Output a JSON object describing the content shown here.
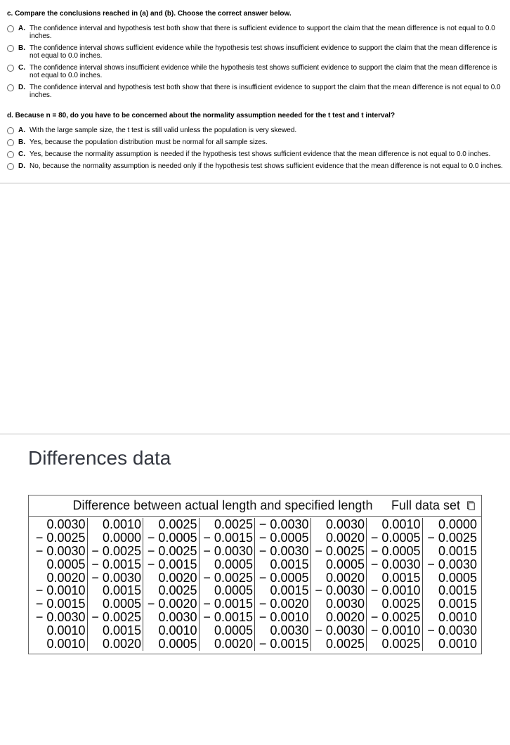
{
  "question_c": {
    "stem": "c. Compare the conclusions reached in (a) and (b). Choose the correct answer below.",
    "options": [
      {
        "letter": "A.",
        "text": "The confidence interval and hypothesis test both show that there is sufficient evidence to support the claim that the mean difference is not equal to 0.0 inches."
      },
      {
        "letter": "B.",
        "text": "The confidence interval shows sufficient evidence while the hypothesis test shows insufficient evidence to support the claim that the mean difference is not equal to 0.0 inches."
      },
      {
        "letter": "C.",
        "text": "The confidence interval shows insufficient evidence while the hypothesis test shows sufficient evidence to support the claim that the mean difference is not equal to 0.0 inches."
      },
      {
        "letter": "D.",
        "text": "The confidence interval and hypothesis test both show that there is insufficient evidence to support the claim that the mean difference is not equal to 0.0 inches."
      }
    ]
  },
  "question_d": {
    "stem": "d. Because n = 80, do you have to be concerned about the normality assumption needed for the t test and t interval?",
    "options": [
      {
        "letter": "A.",
        "text": "With the large sample size, the t test is still valid unless the population is very skewed."
      },
      {
        "letter": "B.",
        "text": "Yes, because the population distribution must be normal for all sample sizes."
      },
      {
        "letter": "C.",
        "text": "Yes, because the normality assumption is needed if the hypothesis test shows sufficient evidence that the mean difference is not equal to 0.0 inches."
      },
      {
        "letter": "D.",
        "text": "No, because the normality assumption is needed only if the hypothesis test shows sufficient evidence that the mean difference is not equal to 0.0 inches."
      }
    ]
  },
  "differences": {
    "title": "Differences data",
    "header_left": "Difference between actual length and specified length",
    "header_right": "Full data set",
    "rows": [
      [
        "0.0030",
        "0.0010",
        "0.0025",
        "0.0025",
        "− 0.0030",
        "0.0030",
        "0.0010",
        "0.0000"
      ],
      [
        "− 0.0025",
        "0.0000",
        "− 0.0005",
        "− 0.0015",
        "− 0.0005",
        "0.0020",
        "− 0.0005",
        "− 0.0025"
      ],
      [
        "− 0.0030",
        "− 0.0025",
        "− 0.0025",
        "− 0.0030",
        "− 0.0030",
        "− 0.0025",
        "− 0.0005",
        "0.0015"
      ],
      [
        "0.0005",
        "− 0.0015",
        "− 0.0015",
        "0.0005",
        "0.0015",
        "0.0005",
        "− 0.0030",
        "− 0.0030"
      ],
      [
        "0.0020",
        "− 0.0030",
        "0.0020",
        "− 0.0025",
        "− 0.0005",
        "0.0020",
        "0.0015",
        "0.0005"
      ],
      [
        "− 0.0010",
        "0.0015",
        "0.0025",
        "0.0005",
        "0.0015",
        "− 0.0030",
        "− 0.0010",
        "0.0015"
      ],
      [
        "− 0.0015",
        "0.0005",
        "− 0.0020",
        "− 0.0015",
        "− 0.0020",
        "0.0030",
        "0.0025",
        "0.0015"
      ],
      [
        "− 0.0030",
        "− 0.0025",
        "0.0030",
        "− 0.0015",
        "− 0.0010",
        "0.0020",
        "− 0.0025",
        "0.0010"
      ],
      [
        "0.0010",
        "0.0015",
        "0.0010",
        "0.0005",
        "0.0030",
        "− 0.0030",
        "− 0.0010",
        "− 0.0030"
      ],
      [
        "0.0010",
        "0.0020",
        "0.0005",
        "0.0020",
        "− 0.0015",
        "0.0025",
        "0.0025",
        "0.0010"
      ]
    ]
  },
  "colors": {
    "text": "#000000",
    "border": "#666666",
    "hr": "#bdbdbd",
    "title": "#333740"
  }
}
